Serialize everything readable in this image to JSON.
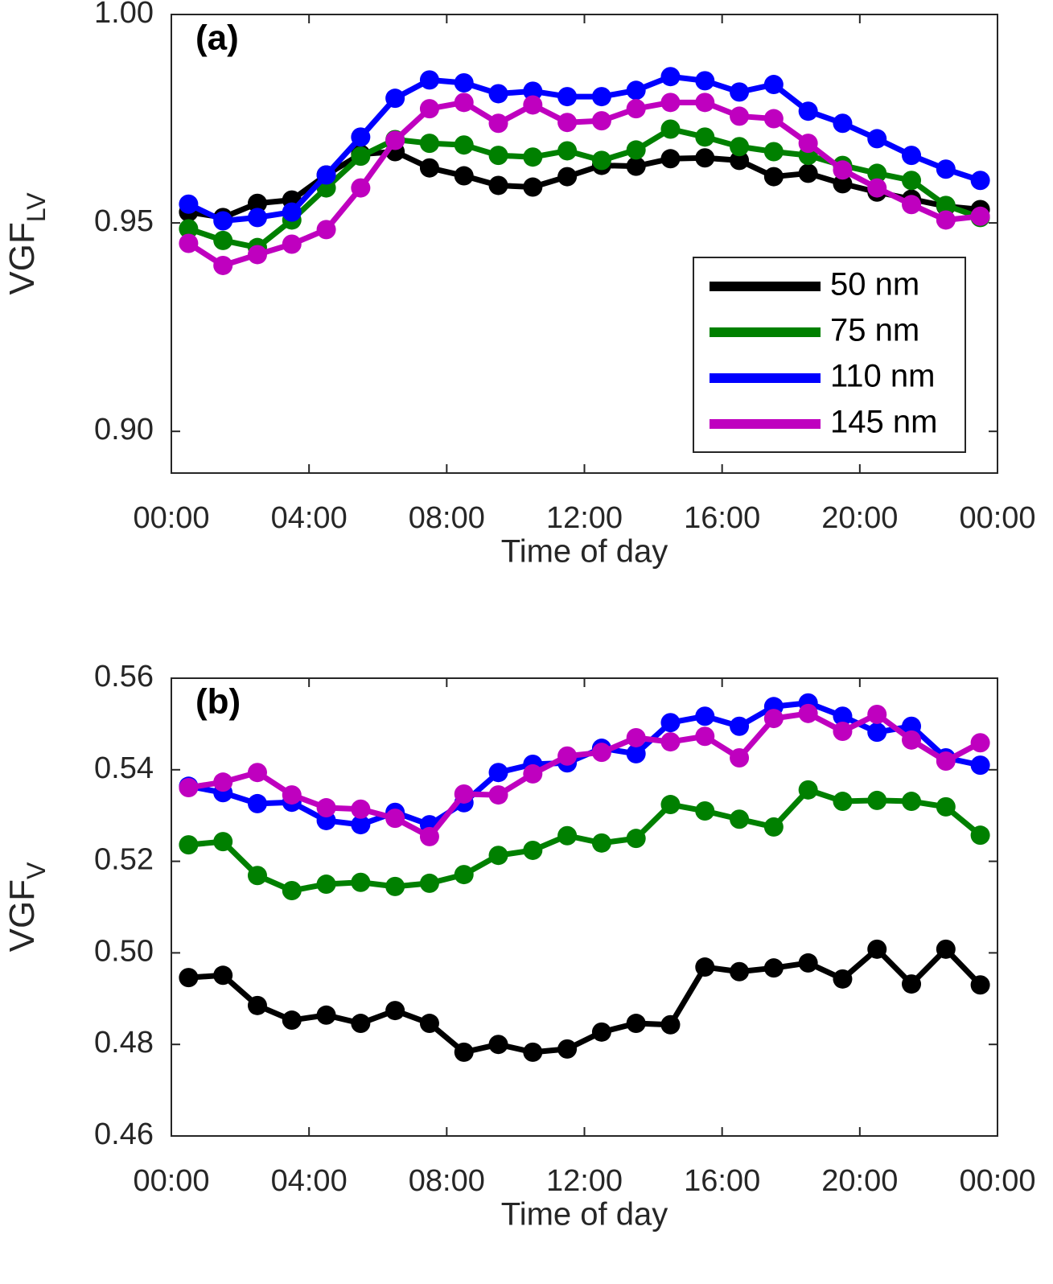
{
  "chart_data": [
    {
      "type": "line",
      "label": "(a)",
      "ylabel": {
        "text": "VGF",
        "subscript": "LV"
      },
      "xlabel": "Time of day",
      "x": [
        0.5,
        1.5,
        2.5,
        3.5,
        4.5,
        5.5,
        6.5,
        7.5,
        8.5,
        9.5,
        10.5,
        11.5,
        12.5,
        13.5,
        14.5,
        15.5,
        16.5,
        17.5,
        18.5,
        19.5,
        20.5,
        21.5,
        22.5,
        23.5
      ],
      "xlim": [
        0,
        24
      ],
      "xticks": [
        {
          "value": 0,
          "label": "00:00"
        },
        {
          "value": 4,
          "label": "04:00"
        },
        {
          "value": 8,
          "label": "08:00"
        },
        {
          "value": 12,
          "label": "12:00"
        },
        {
          "value": 16,
          "label": "16:00"
        },
        {
          "value": 20,
          "label": "20:00"
        },
        {
          "value": 24,
          "label": "00:00"
        }
      ],
      "ylim": [
        0.89,
        1.0
      ],
      "yticks": [
        {
          "value": 0.9,
          "label": "0.90"
        },
        0.95,
        {
          "value": 1.0,
          "label": "1.00"
        }
      ],
      "legend": "lower right",
      "series": [
        {
          "name": "50 nm",
          "color": "#000000",
          "values": [
            0.9526,
            0.9513,
            0.9547,
            0.9555,
            0.9615,
            0.9665,
            0.9671,
            0.9632,
            0.9613,
            0.959,
            0.9586,
            0.9611,
            0.9638,
            0.9636,
            0.9654,
            0.9656,
            0.965,
            0.9611,
            0.9619,
            0.9594,
            0.9574,
            0.9557,
            0.954,
            0.9532
          ]
        },
        {
          "name": "75 nm",
          "color": "#008000",
          "values": [
            0.9486,
            0.9458,
            0.9441,
            0.9507,
            0.9584,
            0.966,
            0.97,
            0.9691,
            0.9687,
            0.9662,
            0.9658,
            0.9673,
            0.965,
            0.9675,
            0.9725,
            0.9706,
            0.9683,
            0.9671,
            0.9662,
            0.9638,
            0.9619,
            0.9602,
            0.9542,
            0.9513
          ]
        },
        {
          "name": "110 nm",
          "color": "#0000ff",
          "values": [
            0.9545,
            0.9505,
            0.9513,
            0.9526,
            0.9615,
            0.9706,
            0.9799,
            0.9843,
            0.9836,
            0.981,
            0.9816,
            0.9803,
            0.9803,
            0.9818,
            0.9851,
            0.9841,
            0.9814,
            0.9832,
            0.9768,
            0.9739,
            0.9702,
            0.9662,
            0.9629,
            0.9602
          ]
        },
        {
          "name": "145 nm",
          "color": "#bf00bf",
          "values": [
            0.9451,
            0.9398,
            0.9424,
            0.9449,
            0.9484,
            0.9584,
            0.9698,
            0.9774,
            0.9789,
            0.9739,
            0.9783,
            0.9741,
            0.9745,
            0.9774,
            0.9789,
            0.9789,
            0.9756,
            0.975,
            0.9691,
            0.9627,
            0.9584,
            0.9544,
            0.9507,
            0.9516
          ]
        }
      ]
    },
    {
      "type": "line",
      "label": "(b)",
      "ylabel": {
        "text": "VGF",
        "subscript": "V"
      },
      "xlabel": "Time of day",
      "x": [
        0.5,
        1.5,
        2.5,
        3.5,
        4.5,
        5.5,
        6.5,
        7.5,
        8.5,
        9.5,
        10.5,
        11.5,
        12.5,
        13.5,
        14.5,
        15.5,
        16.5,
        17.5,
        18.5,
        19.5,
        20.5,
        21.5,
        22.5,
        23.5
      ],
      "xlim": [
        0,
        24
      ],
      "xticks": [
        {
          "value": 0,
          "label": "00:00"
        },
        {
          "value": 4,
          "label": "04:00"
        },
        {
          "value": 8,
          "label": "08:00"
        },
        {
          "value": 12,
          "label": "12:00"
        },
        {
          "value": 16,
          "label": "16:00"
        },
        {
          "value": 20,
          "label": "20:00"
        },
        {
          "value": 24,
          "label": "00:00"
        }
      ],
      "ylim": [
        0.46,
        0.56
      ],
      "yticks": [
        0.46,
        0.48,
        {
          "value": 0.5,
          "label": "0.50"
        },
        0.52,
        0.54,
        0.56
      ],
      "series": [
        {
          "color": "#000000",
          "values": [
            0.4946,
            0.4951,
            0.4885,
            0.4853,
            0.4864,
            0.4846,
            0.4874,
            0.4846,
            0.4783,
            0.48,
            0.4783,
            0.479,
            0.4827,
            0.4846,
            0.4843,
            0.4969,
            0.4959,
            0.4967,
            0.4978,
            0.4943,
            0.5008,
            0.4932,
            0.5008,
            0.493
          ]
        },
        {
          "color": "#008000",
          "values": [
            0.5236,
            0.5243,
            0.5169,
            0.5136,
            0.515,
            0.5154,
            0.5145,
            0.5152,
            0.5171,
            0.5213,
            0.5224,
            0.5256,
            0.524,
            0.525,
            0.5324,
            0.531,
            0.5292,
            0.5275,
            0.5356,
            0.5331,
            0.5333,
            0.5331,
            0.5319,
            0.5257
          ]
        },
        {
          "color": "#0000ff",
          "values": [
            0.5364,
            0.535,
            0.5326,
            0.5329,
            0.5289,
            0.528,
            0.5307,
            0.528,
            0.5328,
            0.5394,
            0.5412,
            0.5415,
            0.5447,
            0.5435,
            0.5503,
            0.5517,
            0.5495,
            0.5538,
            0.5546,
            0.5517,
            0.5482,
            0.5495,
            0.5426,
            0.541
          ]
        },
        {
          "color": "#bf00bf",
          "values": [
            0.5361,
            0.5373,
            0.5394,
            0.5345,
            0.5317,
            0.5314,
            0.5294,
            0.5254,
            0.5347,
            0.5345,
            0.5391,
            0.543,
            0.5438,
            0.547,
            0.5461,
            0.5473,
            0.5426,
            0.5512,
            0.5523,
            0.5484,
            0.5521,
            0.5465,
            0.5419,
            0.5459
          ]
        }
      ]
    }
  ]
}
